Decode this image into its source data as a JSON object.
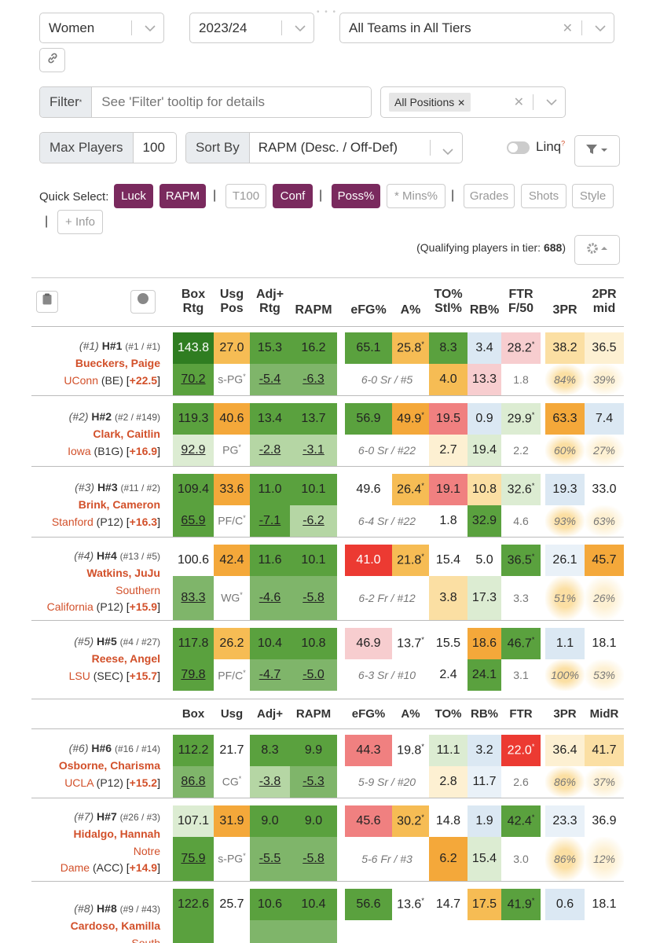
{
  "filters": {
    "gender": "Women",
    "season": "2023/24",
    "teams": "All Teams in All Tiers"
  },
  "filter": {
    "label": "Filter",
    "star": "*",
    "placeholder": "See 'Filter' tooltip for details",
    "position_tag": "All Positions"
  },
  "controls": {
    "max_label": "Max Players",
    "max_value": "100",
    "sort_label": "Sort By",
    "sort_value": "RAPM (Desc. / Off-Def)",
    "linq": "Linq",
    "linq_q": "?"
  },
  "quick": {
    "label": "Quick Select:",
    "chips": [
      "Luck",
      "RAPM",
      "T100",
      "Conf",
      "Poss%",
      "* Mins%",
      "Grades",
      "Shots",
      "Style",
      "+ Info"
    ]
  },
  "qualifying": {
    "prefix": "(Qualifying players in tier: ",
    "count": "688",
    "suffix": ")"
  },
  "headers": {
    "box1": "Box",
    "box2": "Rtg",
    "usg1": "Usg",
    "usg2": "Pos",
    "adj1": "Adj+",
    "adj2": "Rtg",
    "rapm": "RAPM",
    "efg": "eFG%",
    "a": "A%",
    "to1": "TO%",
    "to2": "Stl%",
    "rb": "RB%",
    "ftr1": "FTR",
    "ftr2": "F/50",
    "tpr": "3PR",
    "mid1": "2PR",
    "mid2": "mid"
  },
  "headers2": [
    "Box",
    "Usg",
    "Adj+",
    "RAPM",
    "eFG%",
    "A%",
    "TO%",
    "RB%",
    "FTR",
    "3PR",
    "MidR"
  ],
  "players": [
    {
      "rank": "(#1)",
      "hx": "H#1",
      "sub": "(#1 / #1)",
      "name": "Bueckers, Paige",
      "team1": "",
      "team2": "UConn",
      "conf": "(BE)",
      "bonus": "+22.5",
      "r1": [
        "143.8",
        "27.0",
        "15.3",
        "16.2",
        "65.1",
        "25.8",
        "8.3",
        "3.4",
        "28.2",
        "38.2",
        "36.5"
      ],
      "r2": [
        "70.2",
        "s-PG",
        "-5.4",
        "-6.3",
        "6-0 Sr / #5",
        "4.0",
        "13.3",
        "1.8",
        "84%",
        "39%"
      ]
    },
    {
      "rank": "(#2)",
      "hx": "H#2",
      "sub": "(#2 / #149)",
      "name": "Clark, Caitlin",
      "team1": "",
      "team2": "Iowa",
      "conf": "(B1G)",
      "bonus": "+16.9",
      "r1": [
        "119.3",
        "40.6",
        "13.4",
        "13.7",
        "56.9",
        "49.9",
        "19.5",
        "0.9",
        "29.9",
        "63.3",
        "7.4"
      ],
      "r2": [
        "92.9",
        "PG",
        "-2.8",
        "-3.1",
        "6-0 Sr / #22",
        "2.7",
        "19.4",
        "2.2",
        "60%",
        "27%"
      ]
    },
    {
      "rank": "(#3)",
      "hx": "H#3",
      "sub": "(#11 / #2)",
      "name": "Brink, Cameron",
      "team1": "",
      "team2": "Stanford",
      "conf": "(P12)",
      "bonus": "+16.3",
      "r1": [
        "109.4",
        "33.6",
        "11.0",
        "10.1",
        "49.6",
        "26.4",
        "19.1",
        "10.8",
        "32.6",
        "19.3",
        "33.0"
      ],
      "r2": [
        "65.9",
        "PF/C",
        "-7.1",
        "-6.2",
        "6-4 Sr / #22",
        "1.8",
        "32.9",
        "4.6",
        "93%",
        "63%"
      ]
    },
    {
      "rank": "(#4)",
      "hx": "H#4",
      "sub": "(#13 / #5)",
      "name": "Watkins, JuJu",
      "team1": "Southern",
      "team2": "California",
      "conf": "(P12)",
      "bonus": "+15.9",
      "r1": [
        "100.6",
        "42.4",
        "11.6",
        "10.1",
        "41.0",
        "21.8",
        "15.4",
        "5.0",
        "36.5",
        "26.1",
        "45.7"
      ],
      "r2": [
        "83.3",
        "WG",
        "-4.6",
        "-5.8",
        "6-2 Fr / #12",
        "3.8",
        "17.3",
        "3.3",
        "51%",
        "26%"
      ]
    },
    {
      "rank": "(#5)",
      "hx": "H#5",
      "sub": "(#4 / #27)",
      "name": "Reese, Angel",
      "team1": "",
      "team2": "LSU",
      "conf": "(SEC)",
      "bonus": "+15.7",
      "r1": [
        "117.8",
        "26.2",
        "10.4",
        "10.8",
        "46.9",
        "13.7",
        "15.5",
        "18.6",
        "46.7",
        "1.1",
        "18.1"
      ],
      "r2": [
        "79.8",
        "PF/C",
        "-4.7",
        "-5.0",
        "6-3 Sr / #10",
        "2.4",
        "24.1",
        "3.1",
        "100%",
        "53%"
      ]
    },
    {
      "rank": "(#6)",
      "hx": "H#6",
      "sub": "(#16 / #14)",
      "name": "Osborne, Charisma",
      "team1": "",
      "team2": "UCLA",
      "conf": "(P12)",
      "bonus": "+15.2",
      "r1": [
        "112.2",
        "21.7",
        "8.3",
        "9.9",
        "44.3",
        "19.8",
        "11.1",
        "3.2",
        "22.0",
        "36.4",
        "41.7"
      ],
      "r2": [
        "86.8",
        "CG",
        "-3.8",
        "-5.3",
        "5-9 Sr / #20",
        "2.8",
        "11.7",
        "2.6",
        "86%",
        "37%"
      ]
    },
    {
      "rank": "(#7)",
      "hx": "H#7",
      "sub": "(#26 / #3)",
      "name": "Hidalgo, Hannah",
      "team1": "Notre",
      "team2": "Dame",
      "conf": "(ACC)",
      "bonus": "+14.9",
      "r1": [
        "107.1",
        "31.9",
        "9.0",
        "9.0",
        "45.6",
        "30.2",
        "14.8",
        "1.9",
        "42.4",
        "23.3",
        "36.9"
      ],
      "r2": [
        "75.9",
        "s-PG",
        "-5.5",
        "-5.8",
        "5-6 Fr / #3",
        "6.2",
        "15.4",
        "3.0",
        "86%",
        "12%"
      ]
    },
    {
      "rank": "(#8)",
      "hx": "H#8",
      "sub": "(#9 / #43)",
      "name": "Cardoso, Kamilla",
      "team1": "South",
      "team2": "",
      "conf": "",
      "bonus": "",
      "r1": [
        "122.6",
        "25.7",
        "10.6",
        "10.4",
        "56.6",
        "13.6",
        "14.7",
        "17.5",
        "41.9",
        "0.6",
        "18.1"
      ],
      "r2": [
        "",
        "",
        "",
        "",
        "",
        "",
        "",
        "",
        "",
        ""
      ]
    }
  ]
}
